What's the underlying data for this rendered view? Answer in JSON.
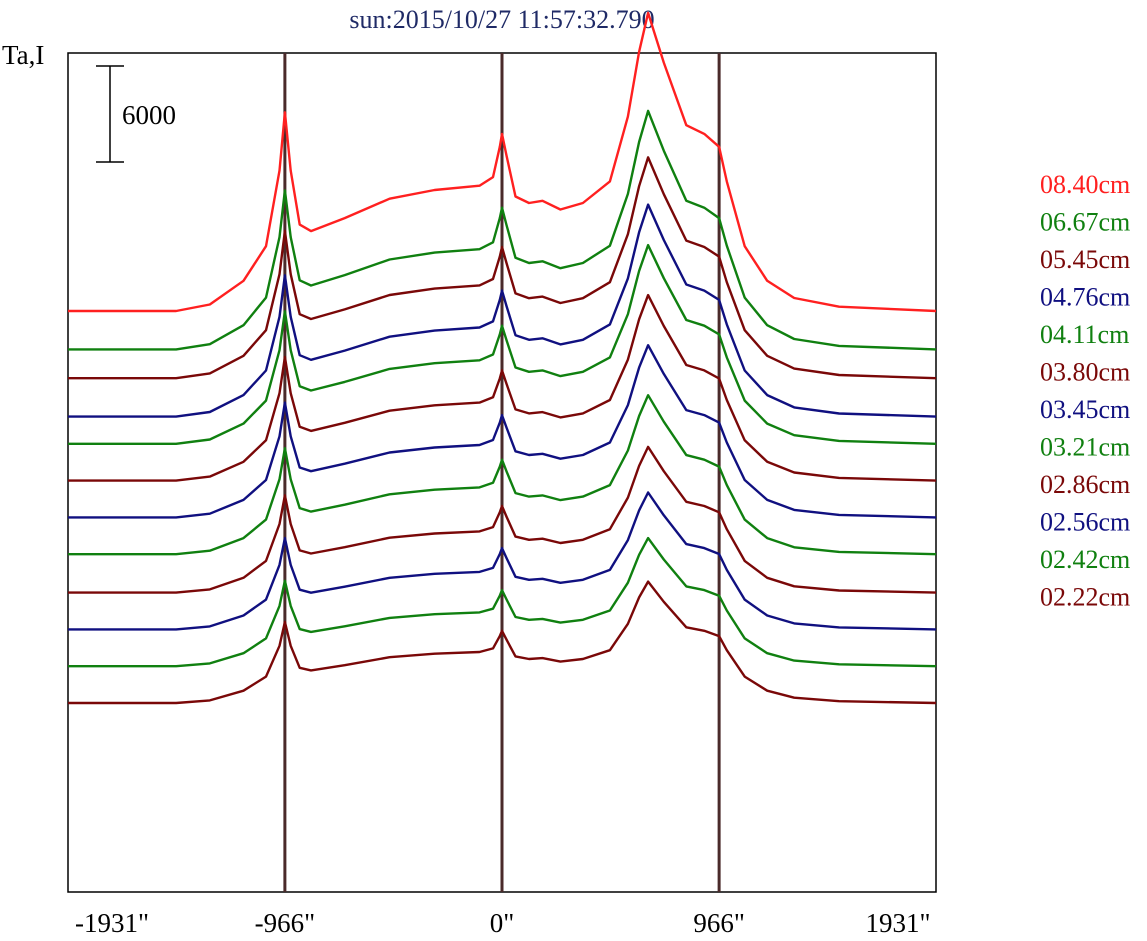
{
  "chart_data": {
    "type": "line",
    "title": "sun:2015/10/27 11:57:32.790",
    "ylabel": "Ta,I",
    "scale_bar_label": "6000",
    "scale_bar_value": 6000,
    "xlim": [
      -1931,
      1931
    ],
    "x_tick_labels": [
      "-1931\"",
      "-966\"",
      "0\"",
      "966\"",
      "1931\""
    ],
    "x_tick_values": [
      -1931,
      -966,
      0,
      966,
      1931
    ],
    "vertical_lines": [
      -966,
      0,
      966
    ],
    "vertical_line_color": "#4a2a2a",
    "axis_color": "#000000",
    "legend_placement": "right",
    "colors": {
      "red": "#ff2020",
      "green": "#108010",
      "maroon": "#7a0808",
      "blue": "#101080"
    },
    "series": [
      {
        "name": "08.40cm",
        "color": "#ff2020",
        "baseline": 0,
        "amp": 1.35
      },
      {
        "name": "06.67cm",
        "color": "#108010",
        "baseline": -2400,
        "amp": 1.08
      },
      {
        "name": "05.45cm",
        "color": "#7a0808",
        "baseline": -4200,
        "amp": 1.0
      },
      {
        "name": "04.76cm",
        "color": "#101080",
        "baseline": -6600,
        "amp": 0.96
      },
      {
        "name": "04.11cm",
        "color": "#108010",
        "baseline": -8300,
        "amp": 0.9
      },
      {
        "name": "03.80cm",
        "color": "#7a0808",
        "baseline": -10600,
        "amp": 0.84
      },
      {
        "name": "03.45cm",
        "color": "#101080",
        "baseline": -12900,
        "amp": 0.78
      },
      {
        "name": "03.21cm",
        "color": "#108010",
        "baseline": -15200,
        "amp": 0.72
      },
      {
        "name": "02.86cm",
        "color": "#7a0808",
        "baseline": -17600,
        "amp": 0.66
      },
      {
        "name": "02.56cm",
        "color": "#101080",
        "baseline": -19900,
        "amp": 0.62
      },
      {
        "name": "02.42cm",
        "color": "#108010",
        "baseline": -22200,
        "amp": 0.58
      },
      {
        "name": "02.22cm",
        "color": "#7a0808",
        "baseline": -24500,
        "amp": 0.55
      }
    ],
    "profile": {
      "x": [
        -1931,
        -1450,
        -1300,
        -1150,
        -1050,
        -990,
        -966,
        -940,
        -900,
        -850,
        -700,
        -500,
        -300,
        -100,
        -40,
        -10,
        0,
        20,
        60,
        120,
        180,
        260,
        360,
        480,
        560,
        610,
        650,
        720,
        820,
        900,
        966,
        1000,
        1080,
        1180,
        1300,
        1500,
        1931
      ],
      "y": [
        0,
        0,
        300,
        1400,
        3000,
        6500,
        9200,
        6500,
        4000,
        3700,
        4300,
        5200,
        5600,
        5800,
        6200,
        7600,
        8200,
        7200,
        5300,
        5000,
        5100,
        4700,
        5000,
        6000,
        9000,
        12000,
        13800,
        11500,
        8600,
        8200,
        7600,
        6000,
        3000,
        1400,
        600,
        200,
        0
      ]
    }
  }
}
